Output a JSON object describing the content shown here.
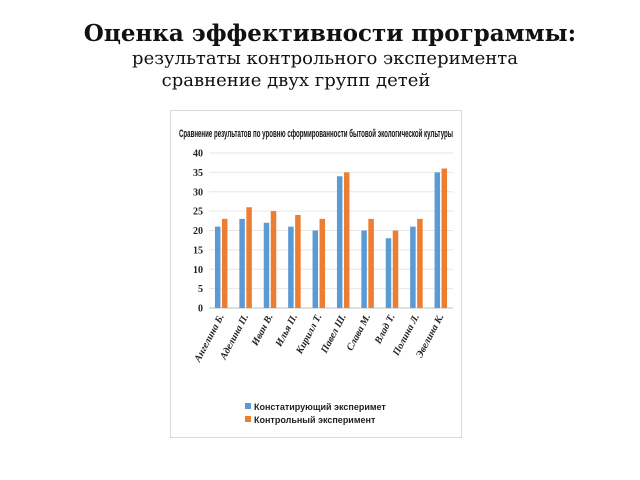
{
  "slide": {
    "title": "Оценка эффективности программы:",
    "subtitle_line1": "результаты контрольного эксперимента",
    "subtitle_line2": "сравнение двух групп детей"
  },
  "chart_data": {
    "type": "bar",
    "title": "Сравнение результатов по уровню сформированности бытовой экологической культуры",
    "categories": [
      "Ангелина Б.",
      "Аделина П.",
      "Иван В.",
      "Илья П.",
      "Кирилл Т.",
      "Павел Ш.",
      "Слава М.",
      "Влад Т.",
      "Полина Л.",
      "Эвелина К."
    ],
    "series": [
      {
        "name": "Констатирующий эксперимет",
        "color": "#5b9bd5",
        "values": [
          21,
          23,
          22,
          21,
          20,
          34,
          20,
          18,
          21,
          35
        ]
      },
      {
        "name": "Контрольный эксперимент",
        "color": "#ed7d31",
        "values": [
          23,
          26,
          25,
          24,
          23,
          35,
          23,
          20,
          23,
          36
        ]
      }
    ],
    "ylim": [
      0,
      40
    ],
    "yticks": [
      0,
      5,
      10,
      15,
      20,
      25,
      30,
      35,
      40
    ],
    "grid": true,
    "legend": "bottom"
  }
}
